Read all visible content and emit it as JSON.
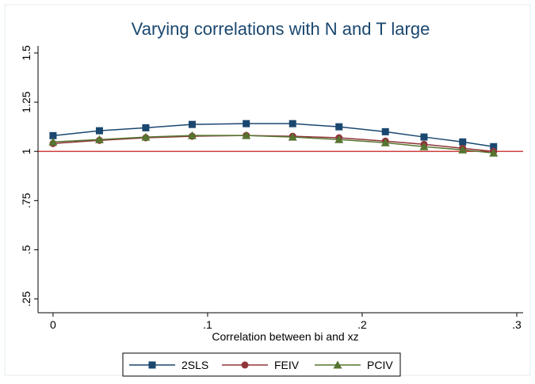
{
  "chart_data": {
    "type": "line",
    "title": "Varying correlations with N and T large",
    "x_label": "Correlation between bi and xz",
    "x": [
      0,
      0.03,
      0.06,
      0.09,
      0.125,
      0.155,
      0.185,
      0.215,
      0.24,
      0.265,
      0.285
    ],
    "series": [
      {
        "name": "2SLS",
        "color": "#1a476f",
        "marker": "square",
        "values": [
          1.08,
          1.105,
          1.12,
          1.137,
          1.141,
          1.141,
          1.125,
          1.1,
          1.073,
          1.048,
          1.024
        ]
      },
      {
        "name": "FEIV",
        "color": "#90353b",
        "marker": "circle",
        "values": [
          1.04,
          1.056,
          1.069,
          1.077,
          1.081,
          1.077,
          1.069,
          1.052,
          1.036,
          1.016,
          1.0
        ]
      },
      {
        "name": "PCIV",
        "color": "#55752f",
        "marker": "triangle",
        "values": [
          1.048,
          1.06,
          1.073,
          1.081,
          1.081,
          1.073,
          1.06,
          1.044,
          1.024,
          1.008,
          0.992
        ]
      }
    ],
    "xlim": [
      -0.0097,
      0.3041
    ],
    "xticks": [
      0,
      {
        "value": 0.1,
        "label": ".1"
      },
      {
        "value": 0.2,
        "label": ".2"
      },
      {
        "value": 0.3,
        "label": ".3"
      }
    ],
    "ylim": [
      0.18,
      1.536
    ],
    "yticks": [
      {
        "value": 0.25,
        "label": ".25"
      },
      {
        "value": 0.5,
        "label": ".5"
      },
      {
        "value": 0.75,
        "label": ".75"
      },
      1,
      1.25,
      1.5
    ],
    "yline": 1,
    "yline_color": "#c00000"
  }
}
